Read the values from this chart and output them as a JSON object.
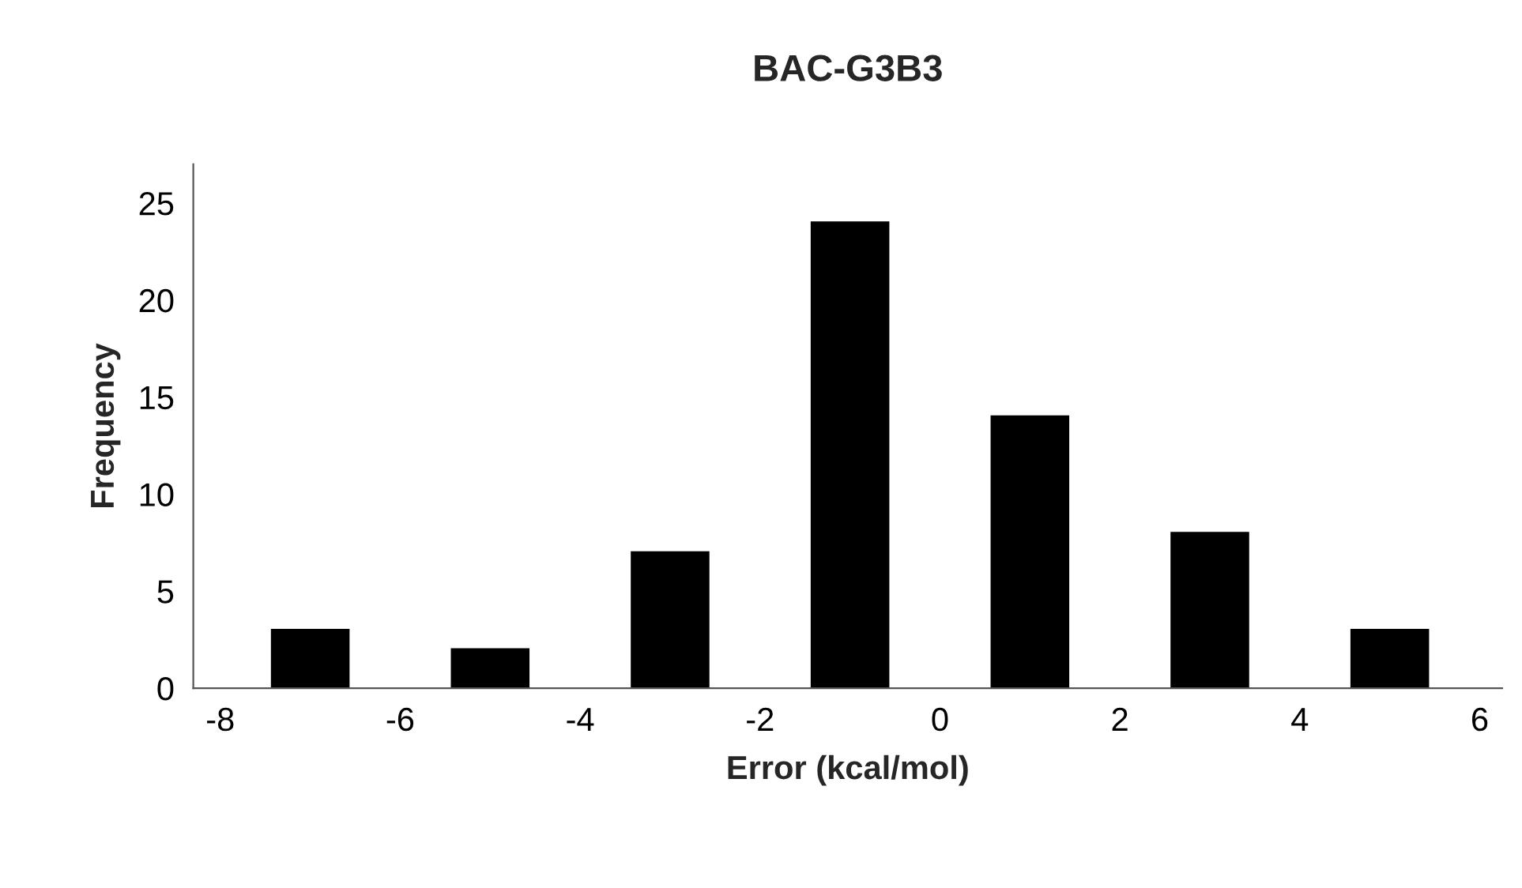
{
  "chart_data": {
    "type": "bar",
    "title": "BAC-G3B3",
    "xlabel": "Error (kcal/mol)",
    "ylabel": "Frequency",
    "x": [
      -7,
      -5,
      -3,
      -1,
      1,
      3,
      5
    ],
    "values": [
      3,
      2,
      7,
      24,
      14,
      8,
      3
    ],
    "color": "#000000",
    "xlim": [
      -8.3,
      6.25
    ],
    "xticks": [
      -8,
      -6,
      -4,
      -2,
      0,
      2,
      4,
      6
    ],
    "ylim": [
      0,
      27
    ],
    "yticks": [
      0,
      5,
      10,
      15,
      20,
      25
    ],
    "grid": false,
    "legend": false
  }
}
